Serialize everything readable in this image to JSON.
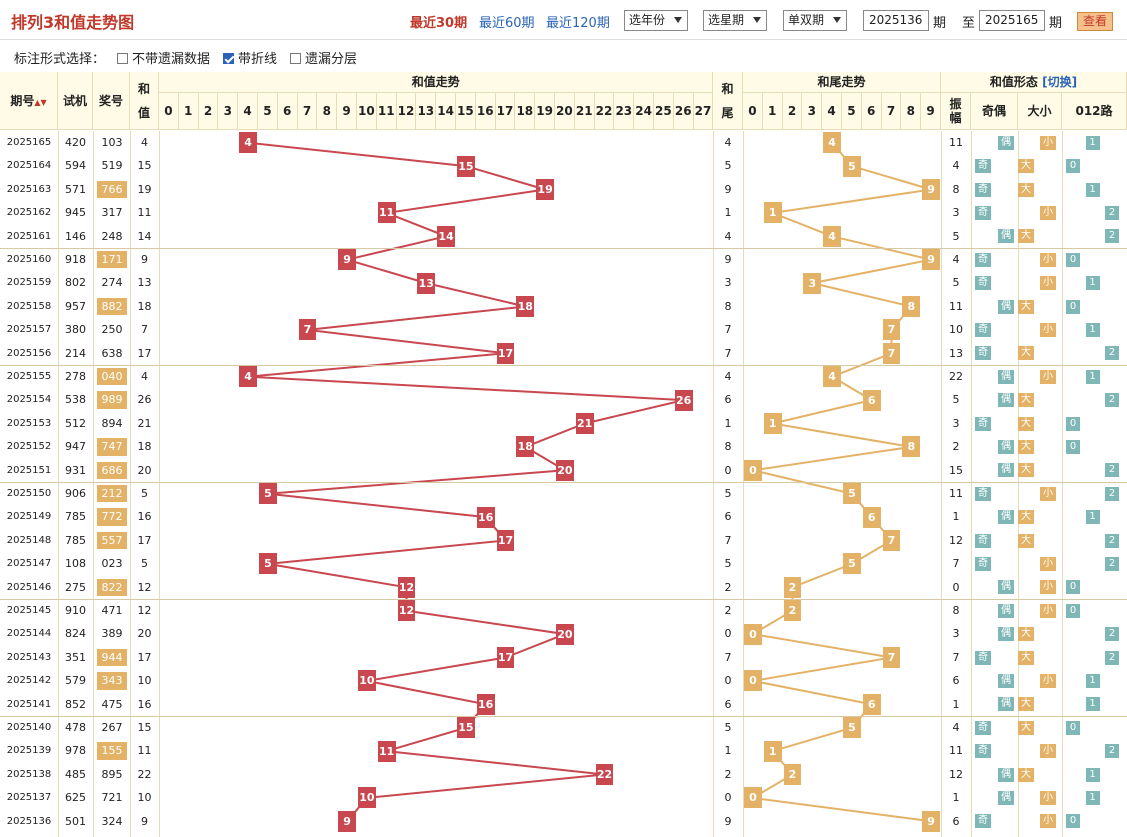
{
  "title": "排列3和值走势图",
  "range_links": [
    "最近30期",
    "最近60期",
    "最近120期"
  ],
  "selects": {
    "year": "选年份",
    "week": "选星期",
    "parity": "单双期"
  },
  "period_from": "2025136",
  "period_to": "2025165",
  "period_label": "期",
  "to_label": "至",
  "query": "查看",
  "options": {
    "label": "标注形式选择：",
    "items": [
      {
        "label": "不带遗漏数据",
        "checked": false
      },
      {
        "label": "带折线",
        "checked": true
      },
      {
        "label": "遗漏分层",
        "checked": false
      }
    ]
  },
  "headers": {
    "period": "期号",
    "period_sort": "▲▼",
    "test": "试机",
    "prize": "奖号",
    "sum1": "和",
    "sum2": "值",
    "sum_trend": "和值走势",
    "tail1": "和",
    "tail2": "尾",
    "tail_trend": "和尾走势",
    "form": "和值形态",
    "switch": "[切换]",
    "amp1": "振",
    "amp2": "幅",
    "oe": "奇偶",
    "bs": "大小",
    "r012": "012路"
  },
  "sum_digits": [
    "0",
    "1",
    "2",
    "3",
    "4",
    "5",
    "6",
    "7",
    "8",
    "9",
    "10",
    "11",
    "12",
    "13",
    "14",
    "15",
    "16",
    "17",
    "18",
    "19",
    "20",
    "21",
    "22",
    "23",
    "24",
    "25",
    "26",
    "27"
  ],
  "tail_digits": [
    "0",
    "1",
    "2",
    "3",
    "4",
    "5",
    "6",
    "7",
    "8",
    "9"
  ],
  "labels": {
    "odd": "奇",
    "even": "偶",
    "big": "大",
    "small": "小",
    "r0": "0",
    "r1": "1",
    "r2": "2"
  },
  "colors": {
    "sum_ball": "#c9474f",
    "tail_ball": "#e3b266",
    "form_tag": "#e3b266",
    "route_tag": "#7fb7b7",
    "header_bg": "#fffbe6",
    "line_sum": "#c9474f",
    "line_tail": "#e3b266"
  },
  "rows": [
    {
      "p": "2025165",
      "t": "420",
      "n": "103",
      "s": 4,
      "amp": 11,
      "hl": false
    },
    {
      "p": "2025164",
      "t": "594",
      "n": "519",
      "s": 15,
      "amp": 4,
      "hl": false
    },
    {
      "p": "2025163",
      "t": "571",
      "n": "766",
      "s": 19,
      "amp": 8,
      "hl": true
    },
    {
      "p": "2025162",
      "t": "945",
      "n": "317",
      "s": 11,
      "amp": 3,
      "hl": false
    },
    {
      "p": "2025161",
      "t": "146",
      "n": "248",
      "s": 14,
      "amp": 5,
      "hl": false
    },
    {
      "p": "2025160",
      "t": "918",
      "n": "171",
      "s": 9,
      "amp": 4,
      "hl": true
    },
    {
      "p": "2025159",
      "t": "802",
      "n": "274",
      "s": 13,
      "amp": 5,
      "hl": false
    },
    {
      "p": "2025158",
      "t": "957",
      "n": "882",
      "s": 18,
      "amp": 11,
      "hl": true
    },
    {
      "p": "2025157",
      "t": "380",
      "n": "250",
      "s": 7,
      "amp": 10,
      "hl": false
    },
    {
      "p": "2025156",
      "t": "214",
      "n": "638",
      "s": 17,
      "amp": 13,
      "hl": false
    },
    {
      "p": "2025155",
      "t": "278",
      "n": "040",
      "s": 4,
      "amp": 22,
      "hl": true
    },
    {
      "p": "2025154",
      "t": "538",
      "n": "989",
      "s": 26,
      "amp": 5,
      "hl": true
    },
    {
      "p": "2025153",
      "t": "512",
      "n": "894",
      "s": 21,
      "amp": 3,
      "hl": false
    },
    {
      "p": "2025152",
      "t": "947",
      "n": "747",
      "s": 18,
      "amp": 2,
      "hl": true
    },
    {
      "p": "2025151",
      "t": "931",
      "n": "686",
      "s": 20,
      "amp": 15,
      "hl": true
    },
    {
      "p": "2025150",
      "t": "906",
      "n": "212",
      "s": 5,
      "amp": 11,
      "hl": true
    },
    {
      "p": "2025149",
      "t": "785",
      "n": "772",
      "s": 16,
      "amp": 1,
      "hl": true
    },
    {
      "p": "2025148",
      "t": "785",
      "n": "557",
      "s": 17,
      "amp": 12,
      "hl": true
    },
    {
      "p": "2025147",
      "t": "108",
      "n": "023",
      "s": 5,
      "amp": 7,
      "hl": false
    },
    {
      "p": "2025146",
      "t": "275",
      "n": "822",
      "s": 12,
      "amp": 0,
      "hl": true
    },
    {
      "p": "2025145",
      "t": "910",
      "n": "471",
      "s": 12,
      "amp": 8,
      "hl": false
    },
    {
      "p": "2025144",
      "t": "824",
      "n": "389",
      "s": 20,
      "amp": 3,
      "hl": false
    },
    {
      "p": "2025143",
      "t": "351",
      "n": "944",
      "s": 17,
      "amp": 7,
      "hl": true
    },
    {
      "p": "2025142",
      "t": "579",
      "n": "343",
      "s": 10,
      "amp": 6,
      "hl": true
    },
    {
      "p": "2025141",
      "t": "852",
      "n": "475",
      "s": 16,
      "amp": 1,
      "hl": false
    },
    {
      "p": "2025140",
      "t": "478",
      "n": "267",
      "s": 15,
      "amp": 4,
      "hl": false
    },
    {
      "p": "2025139",
      "t": "978",
      "n": "155",
      "s": 11,
      "amp": 11,
      "hl": true
    },
    {
      "p": "2025138",
      "t": "485",
      "n": "895",
      "s": 22,
      "amp": 12,
      "hl": false
    },
    {
      "p": "2025137",
      "t": "625",
      "n": "721",
      "s": 10,
      "amp": 1,
      "hl": false
    },
    {
      "p": "2025136",
      "t": "501",
      "n": "324",
      "s": 9,
      "amp": 6,
      "hl": false
    }
  ]
}
